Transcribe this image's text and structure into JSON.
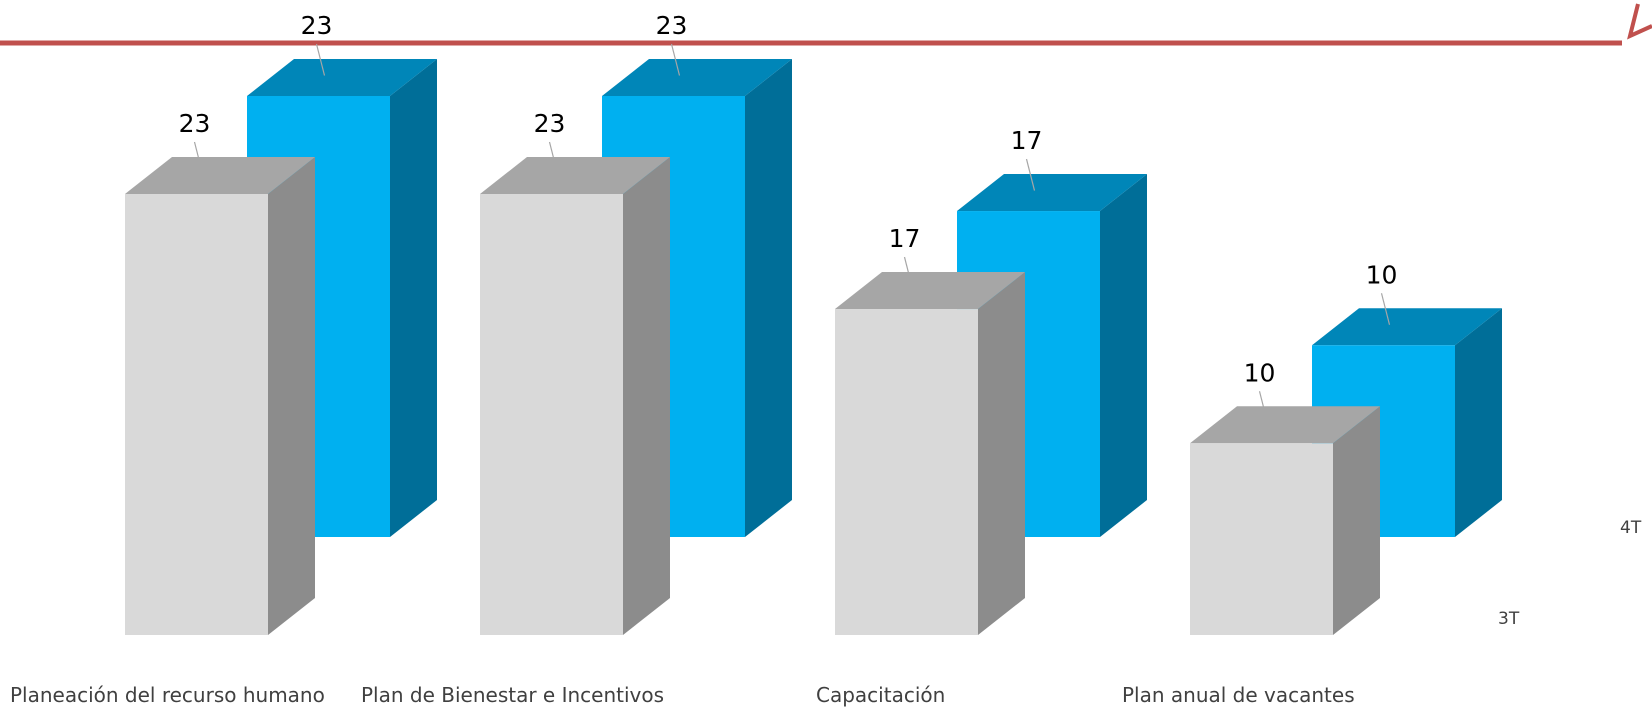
{
  "chart_data": {
    "type": "bar",
    "categories": [
      "Planeación del recurso humano",
      "Plan de Bienestar e Incentivos",
      "Capacitación",
      "Plan anual de vacantes"
    ],
    "series": [
      {
        "name": "3T",
        "values": [
          23,
          23,
          17,
          10
        ]
      },
      {
        "name": "4T",
        "values": [
          23,
          23,
          17,
          10
        ]
      }
    ],
    "ylim": [
      0,
      23
    ],
    "grid": false,
    "style": "3d-column"
  },
  "colors": {
    "series_3T": {
      "front": "#d9d9d9",
      "top": "#a6a6a6",
      "side": "#8c8c8c"
    },
    "series_4T": {
      "front": "#00b0f0",
      "top": "#0086b8",
      "side": "#006e98"
    },
    "top_rule": "#c0504d"
  }
}
